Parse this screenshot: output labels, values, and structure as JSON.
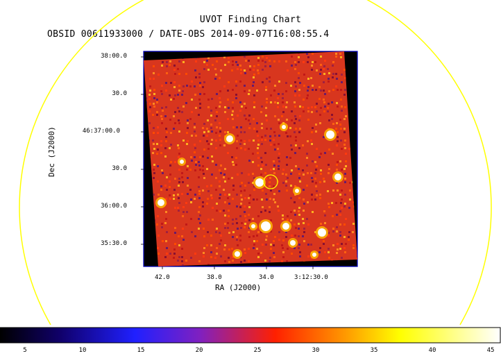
{
  "title": "UVOT Finding Chart",
  "subtitle": "OBSID 00611933000 / DATE-OBS 2014-09-07T16:08:55.4",
  "axes": {
    "y_label": "Dec (J2000)",
    "x_label": "RA (J2000)",
    "y_ticks": [
      "38:00.0",
      "30.0",
      "46:37:00.0",
      "30.0",
      "36:00.0",
      "35:30.0"
    ],
    "x_ticks": [
      "42.0",
      "38.0",
      "34.0",
      "3:12:30.0"
    ]
  },
  "colorbar": {
    "ticks": [
      "5",
      "10",
      "15",
      "20",
      "25",
      "30",
      "35",
      "40",
      "45"
    ],
    "colors": [
      "#000000",
      "#0000ff",
      "#ff0000",
      "#ffff00",
      "#ffffff"
    ]
  },
  "colors": {
    "overlay_circle": "#ffff00",
    "frame": "#0000c0",
    "image_red": "#e03020"
  }
}
